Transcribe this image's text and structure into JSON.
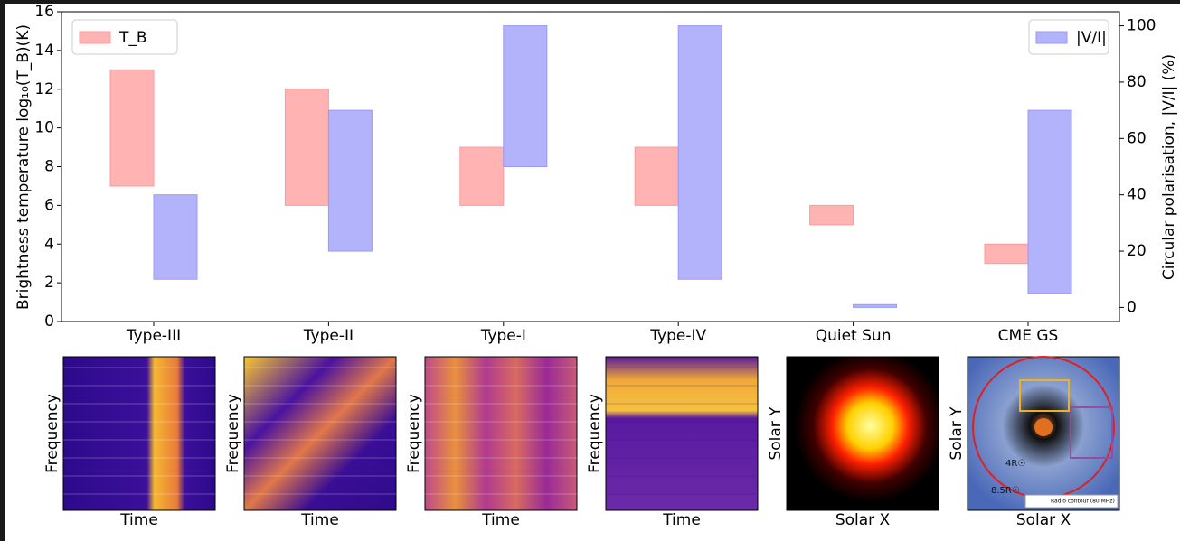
{
  "chart_data": {
    "type": "floating-bar",
    "categories": [
      "Type-III",
      "Type-II",
      "Type-I",
      "Type-IV",
      "Quiet Sun",
      "CME GS"
    ],
    "ylabel": "Brightness temperature log₁₀(T_B)(K)",
    "y2label": "Circular polarisation, |V/I| (%)",
    "ylim": [
      0,
      16
    ],
    "yticks": [
      0,
      2,
      4,
      6,
      8,
      10,
      12,
      14,
      16
    ],
    "y2lim": [
      -5,
      105
    ],
    "y2ticks": [
      0,
      20,
      40,
      60,
      80,
      100
    ],
    "series": [
      {
        "name": "T_B",
        "color": "#ffb3b3",
        "edge": "#ff9999",
        "legend": "upper left",
        "values": [
          [
            7,
            13
          ],
          [
            6,
            12
          ],
          [
            6,
            9
          ],
          [
            6,
            9
          ],
          [
            5,
            6
          ],
          [
            3,
            4
          ]
        ]
      },
      {
        "name": "|V/I|",
        "color": "#b3b3fb",
        "edge": "#9999f5",
        "axis": "y2",
        "legend": "upper right",
        "values": [
          [
            10,
            40
          ],
          [
            20,
            70
          ],
          [
            50,
            100
          ],
          [
            10,
            100
          ],
          [
            0,
            1
          ],
          [
            5,
            70
          ]
        ]
      }
    ]
  },
  "panels": [
    {
      "x_label": "Time",
      "y_label": "Frequency"
    },
    {
      "x_label": "Time",
      "y_label": "Frequency"
    },
    {
      "x_label": "Time",
      "y_label": "Frequency"
    },
    {
      "x_label": "Time",
      "y_label": "Frequency"
    },
    {
      "x_label": "Solar X",
      "y_label": "Solar Y"
    },
    {
      "x_label": "Solar X",
      "y_label": "Solar Y",
      "annotations": [
        "4R☉",
        "8.5R☉",
        "Radio contour (80 MHz)"
      ]
    }
  ]
}
